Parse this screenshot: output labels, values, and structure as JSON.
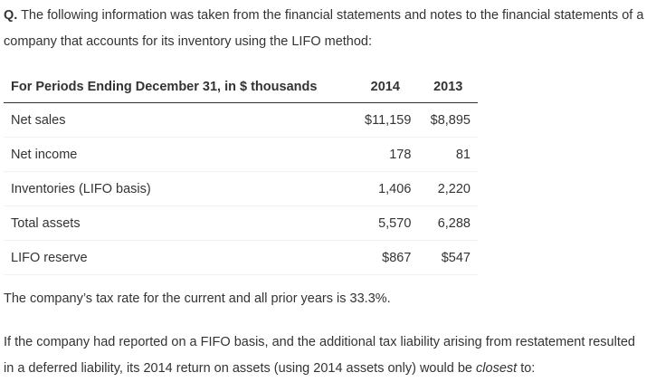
{
  "question": {
    "prefix": "Q.",
    "text": " The following information was taken from the financial statements and notes to the financial statements of a company that accounts for its inventory using the LIFO method:"
  },
  "table": {
    "header": [
      "For Periods Ending December 31, in $ thousands",
      "2014",
      "2013"
    ],
    "rows": [
      [
        "Net sales",
        "$11,159",
        "$8,895"
      ],
      [
        "Net income",
        "178",
        "81"
      ],
      [
        "Inventories (LIFO basis)",
        "1,406",
        "2,220"
      ],
      [
        "Total assets",
        "5,570",
        "6,288"
      ],
      [
        "LIFO reserve",
        "$867",
        "$547"
      ]
    ]
  },
  "note": "The company’s tax rate for the current and all prior years is 33.3%.",
  "prompt": {
    "before": "If the company had reported on a FIFO basis, and the additional tax liability arising from restatement resulted in a deferred liability, its 2014 return on assets (using 2014 assets only) would be ",
    "emphasis": "closest",
    "after": " to:"
  }
}
